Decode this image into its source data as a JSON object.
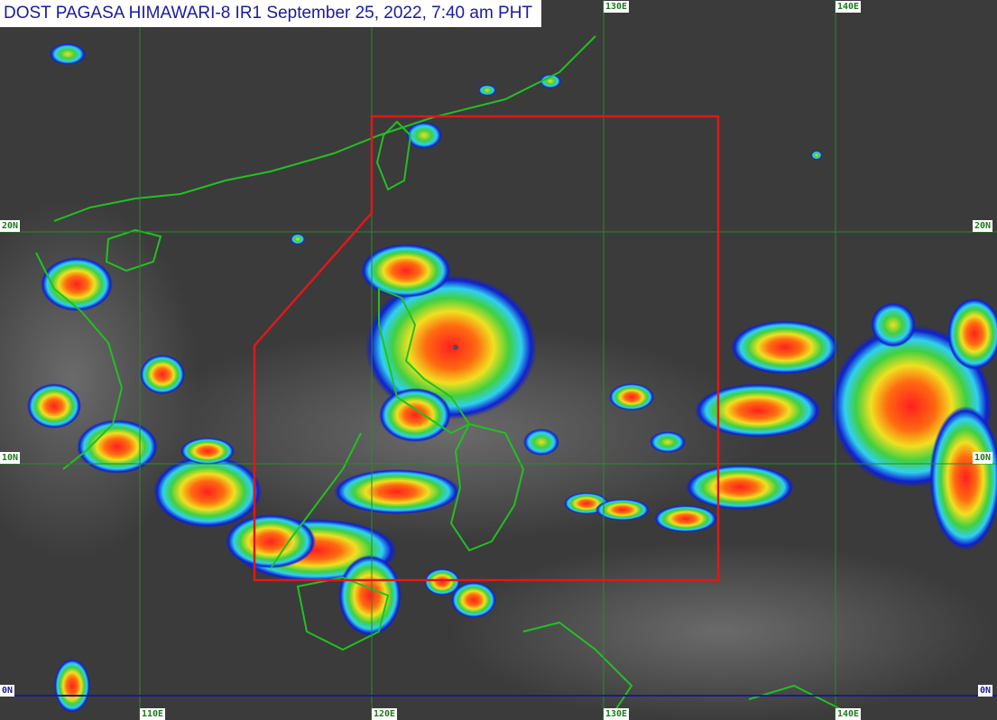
{
  "title": "DOST PAGASA HIMAWARI-8 IR1 September 25, 2022, 7:40 am PHT",
  "grid": {
    "longitudes_top": [
      "130E",
      "140E"
    ],
    "longitudes_bottom": [
      "110E",
      "120E",
      "130E",
      "140E"
    ],
    "latitudes": [
      "20N",
      "10N",
      "0N"
    ]
  },
  "colors": {
    "background": "#3b3b3b",
    "coastline": "#22c022",
    "grid": "#2a8a2a",
    "equator": "#1a1a90",
    "area_of_responsibility": "#e01818",
    "title_text": "#1a1aa0"
  },
  "legend_scale": [
    "blue",
    "cyan",
    "green",
    "yellow",
    "orange",
    "red"
  ]
}
